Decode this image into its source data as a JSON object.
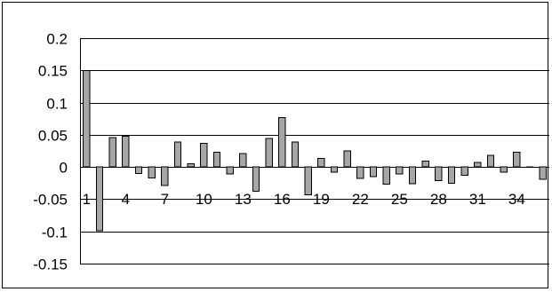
{
  "chart_data": {
    "type": "bar",
    "title": "",
    "xlabel": "",
    "ylabel": "",
    "ylim": [
      -0.15,
      0.2
    ],
    "yticks": [
      0.2,
      0.15,
      0.1,
      0.05,
      0,
      -0.05,
      -0.1,
      -0.15
    ],
    "ytick_labels": [
      "0.2",
      "0.15",
      "0.1",
      "0.05",
      "0",
      "-0.05",
      "-0.1",
      "-0.15"
    ],
    "grid": "horizontal",
    "legend": "none",
    "categories": [
      1,
      2,
      3,
      4,
      5,
      6,
      7,
      8,
      9,
      10,
      11,
      12,
      13,
      14,
      15,
      16,
      17,
      18,
      19,
      20,
      21,
      22,
      23,
      24,
      25,
      26,
      27,
      28,
      29,
      30,
      31,
      32,
      33,
      34,
      35,
      36
    ],
    "xtick_labels": [
      "1",
      "4",
      "7",
      "10",
      "13",
      "16",
      "19",
      "22",
      "25",
      "28",
      "31",
      "34"
    ],
    "xtick_categories": [
      1,
      4,
      7,
      10,
      13,
      16,
      19,
      22,
      25,
      28,
      31,
      34
    ],
    "values": [
      0.15,
      -0.099,
      0.046,
      0.048,
      -0.01,
      -0.017,
      -0.029,
      0.039,
      0.005,
      0.037,
      0.023,
      -0.011,
      0.021,
      -0.038,
      0.044,
      0.077,
      0.039,
      -0.043,
      0.013,
      -0.008,
      0.025,
      -0.018,
      -0.015,
      -0.027,
      -0.011,
      -0.026,
      0.009,
      -0.021,
      -0.025,
      -0.013,
      0.007,
      0.018,
      -0.008,
      0.023,
      0.0,
      -0.019
    ],
    "colors": {
      "bar": "#a6a6a6",
      "bar_border": "#000000",
      "grid": "#000000"
    }
  }
}
